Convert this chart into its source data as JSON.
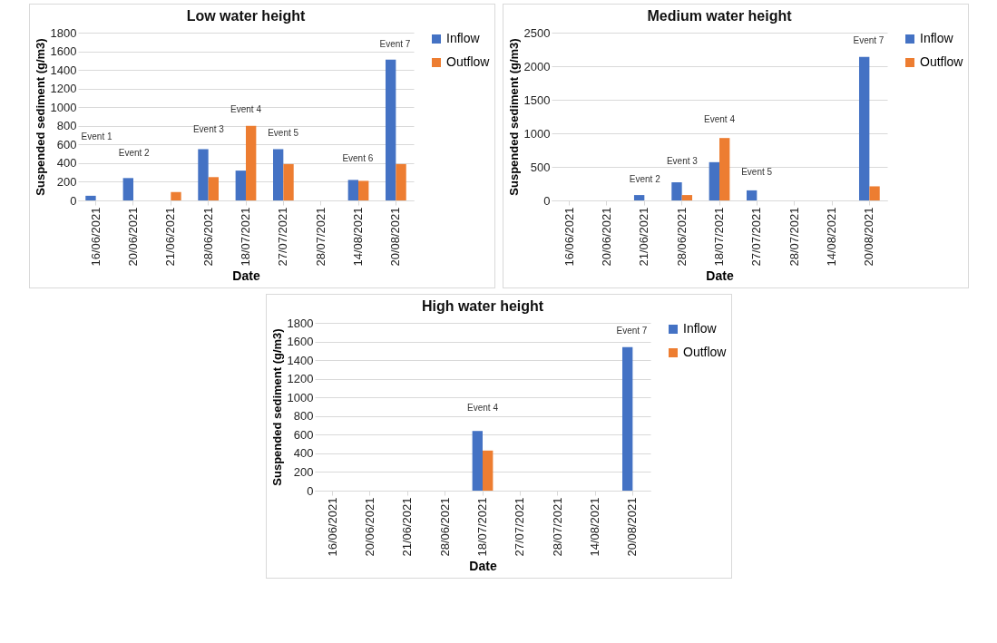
{
  "chart_data": [
    {
      "type": "bar",
      "title": "Low water height",
      "xlabel": "Date",
      "ylabel": "Suspended sediment (g/m3)",
      "categories": [
        "16/06/2021",
        "20/06/2021",
        "21/06/2021",
        "28/06/2021",
        "18/07/2021",
        "27/07/2021",
        "28/07/2021",
        "14/08/2021",
        "20/08/2021"
      ],
      "series": [
        {
          "name": "Inflow",
          "color": "#4472c4",
          "values": [
            50,
            240,
            null,
            550,
            320,
            550,
            null,
            220,
            1510
          ]
        },
        {
          "name": "Outflow",
          "color": "#ed7d31",
          "values": [
            null,
            null,
            90,
            250,
            800,
            390,
            null,
            210,
            390
          ]
        }
      ],
      "ylim": [
        0,
        1800
      ],
      "yticks": [
        0,
        200,
        400,
        600,
        800,
        1000,
        1200,
        1400,
        1600,
        1800
      ],
      "grid": "y",
      "legend": "top right",
      "annotations": [
        "Event 1",
        "Event 2",
        "Event 3",
        "Event 4",
        "Event 5",
        "Event 6",
        "Event 7"
      ]
    },
    {
      "type": "bar",
      "title": "Medium water height",
      "xlabel": "Date",
      "ylabel": "Suspended sediment (g/m3)",
      "categories": [
        "16/06/2021",
        "20/06/2021",
        "21/06/2021",
        "28/06/2021",
        "18/07/2021",
        "27/07/2021",
        "28/07/2021",
        "14/08/2021",
        "20/08/2021"
      ],
      "series": [
        {
          "name": "Inflow",
          "color": "#4472c4",
          "values": [
            null,
            null,
            80,
            270,
            570,
            150,
            null,
            null,
            2140
          ]
        },
        {
          "name": "Outflow",
          "color": "#ed7d31",
          "values": [
            null,
            null,
            null,
            80,
            930,
            null,
            null,
            null,
            210
          ]
        }
      ],
      "ylim": [
        0,
        2500
      ],
      "yticks": [
        0,
        500,
        1000,
        1500,
        2000,
        2500
      ],
      "grid": "y",
      "legend": "top right",
      "annotations": [
        "Event 2",
        "Event 3",
        "Event 4",
        "Event 5",
        "Event 7"
      ]
    },
    {
      "type": "bar",
      "title": "High water height",
      "xlabel": "Date",
      "ylabel": "Suspended sediment (g/m3)",
      "categories": [
        "16/06/2021",
        "20/06/2021",
        "21/06/2021",
        "28/06/2021",
        "18/07/2021",
        "27/07/2021",
        "28/07/2021",
        "14/08/2021",
        "20/08/2021"
      ],
      "series": [
        {
          "name": "Inflow",
          "color": "#4472c4",
          "values": [
            null,
            null,
            null,
            null,
            640,
            null,
            null,
            null,
            1540
          ]
        },
        {
          "name": "Outflow",
          "color": "#ed7d31",
          "values": [
            null,
            null,
            null,
            null,
            430,
            null,
            null,
            null,
            null
          ]
        }
      ],
      "ylim": [
        0,
        1800
      ],
      "yticks": [
        0,
        200,
        400,
        600,
        800,
        1000,
        1200,
        1400,
        1600,
        1800
      ],
      "grid": "y",
      "legend": "top right",
      "annotations": [
        "Event 4",
        "Event 7"
      ]
    }
  ]
}
